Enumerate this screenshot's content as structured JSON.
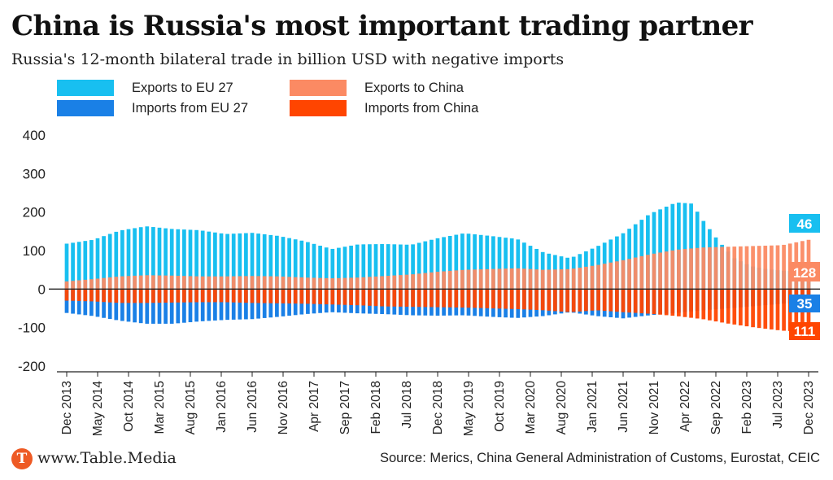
{
  "header": {
    "title": "China is Russia's most important trading partner",
    "subtitle": "Russia's 12-month bilateral trade in billion USD with negative imports"
  },
  "legend": [
    {
      "label": "Exports to EU 27",
      "color": "#18bff0"
    },
    {
      "label": "Imports from EU 27",
      "color": "#1a80e6"
    },
    {
      "label": "Exports to China",
      "color": "#fb8a63"
    },
    {
      "label": "Imports from China",
      "color": "#ff4500"
    }
  ],
  "footer": {
    "logo_letter": "T",
    "site": "www.Table.Media",
    "source": "Source: Merics, China General Administration of Customs, Eurostat, CEIC"
  },
  "chart_data": {
    "type": "bar",
    "title": "China is Russia's most important trading partner",
    "subtitle": "Russia's 12-month bilateral trade in billion USD with negative imports",
    "xlabel": "",
    "ylabel": "",
    "ylim": [
      -200,
      400
    ],
    "yticks": [
      -200,
      -100,
      0,
      100,
      200,
      300,
      400
    ],
    "grid": false,
    "x_start": "Dec 2013",
    "x_end": "Dec 2023",
    "xtick_labels": [
      "Dec 2013",
      "May 2014",
      "Oct 2014",
      "Mar 2015",
      "Aug 2015",
      "Jan 2016",
      "Jun 2016",
      "Nov 2016",
      "Apr 2017",
      "Sep 2017",
      "Feb 2018",
      "Jul 2018",
      "Dec 2018",
      "May 2019",
      "Oct 2019",
      "Mar 2020",
      "Aug 2020",
      "Jan 2021",
      "Jun 2021",
      "Nov 2021",
      "Apr 2022",
      "Sep 2022",
      "Feb 2023",
      "Jul 2023",
      "Dec 2023"
    ],
    "anchor_values": {
      "exports_eu": [
        [
          0,
          118
        ],
        [
          5,
          128
        ],
        [
          10,
          152
        ],
        [
          15,
          163
        ],
        [
          20,
          156
        ],
        [
          25,
          153
        ],
        [
          30,
          143
        ],
        [
          35,
          146
        ],
        [
          40,
          138
        ],
        [
          45,
          124
        ],
        [
          50,
          104
        ],
        [
          55,
          116
        ],
        [
          60,
          117
        ],
        [
          65,
          115
        ],
        [
          70,
          132
        ],
        [
          75,
          145
        ],
        [
          80,
          138
        ],
        [
          85,
          130
        ],
        [
          90,
          95
        ],
        [
          95,
          80
        ],
        [
          100,
          110
        ],
        [
          105,
          145
        ],
        [
          110,
          195
        ],
        [
          115,
          225
        ],
        [
          118,
          222
        ],
        [
          120,
          180
        ],
        [
          123,
          125
        ],
        [
          126,
          80
        ],
        [
          129,
          60
        ],
        [
          132,
          52
        ],
        [
          135,
          48
        ],
        [
          138,
          46
        ],
        [
          140,
          46
        ]
      ],
      "imports_eu": [
        [
          0,
          -62
        ],
        [
          5,
          -70
        ],
        [
          10,
          -82
        ],
        [
          15,
          -90
        ],
        [
          20,
          -90
        ],
        [
          25,
          -84
        ],
        [
          30,
          -80
        ],
        [
          35,
          -78
        ],
        [
          40,
          -72
        ],
        [
          45,
          -65
        ],
        [
          50,
          -60
        ],
        [
          55,
          -63
        ],
        [
          60,
          -65
        ],
        [
          65,
          -68
        ],
        [
          70,
          -69
        ],
        [
          75,
          -68
        ],
        [
          80,
          -72
        ],
        [
          85,
          -75
        ],
        [
          90,
          -70
        ],
        [
          95,
          -60
        ],
        [
          100,
          -70
        ],
        [
          105,
          -76
        ],
        [
          110,
          -68
        ],
        [
          115,
          -62
        ],
        [
          120,
          -55
        ],
        [
          125,
          -50
        ],
        [
          130,
          -44
        ],
        [
          135,
          -38
        ],
        [
          140,
          -35
        ]
      ],
      "exports_china": [
        [
          0,
          20
        ],
        [
          5,
          26
        ],
        [
          10,
          33
        ],
        [
          15,
          36
        ],
        [
          20,
          35
        ],
        [
          25,
          33
        ],
        [
          30,
          33
        ],
        [
          35,
          34
        ],
        [
          40,
          33
        ],
        [
          45,
          30
        ],
        [
          50,
          28
        ],
        [
          55,
          30
        ],
        [
          60,
          34
        ],
        [
          65,
          38
        ],
        [
          70,
          45
        ],
        [
          75,
          50
        ],
        [
          80,
          52
        ],
        [
          85,
          54
        ],
        [
          90,
          50
        ],
        [
          95,
          52
        ],
        [
          100,
          62
        ],
        [
          105,
          75
        ],
        [
          110,
          90
        ],
        [
          115,
          102
        ],
        [
          120,
          108
        ],
        [
          125,
          110
        ],
        [
          130,
          112
        ],
        [
          135,
          114
        ],
        [
          140,
          128
        ]
      ],
      "imports_china": [
        [
          0,
          -30
        ],
        [
          5,
          -32
        ],
        [
          10,
          -36
        ],
        [
          15,
          -36
        ],
        [
          20,
          -35
        ],
        [
          25,
          -34
        ],
        [
          30,
          -34
        ],
        [
          35,
          -36
        ],
        [
          40,
          -37
        ],
        [
          45,
          -38
        ],
        [
          50,
          -40
        ],
        [
          55,
          -42
        ],
        [
          60,
          -45
        ],
        [
          65,
          -46
        ],
        [
          70,
          -47
        ],
        [
          75,
          -48
        ],
        [
          80,
          -50
        ],
        [
          85,
          -52
        ],
        [
          90,
          -55
        ],
        [
          95,
          -60
        ],
        [
          100,
          -55
        ],
        [
          105,
          -60
        ],
        [
          110,
          -64
        ],
        [
          115,
          -70
        ],
        [
          120,
          -78
        ],
        [
          125,
          -90
        ],
        [
          130,
          -100
        ],
        [
          135,
          -108
        ],
        [
          140,
          -111
        ]
      ]
    },
    "end_labels": [
      {
        "series": "Exports to EU 27",
        "value": "46"
      },
      {
        "series": "Exports to China",
        "value": "128"
      },
      {
        "series": "Imports from EU 27",
        "value": "35"
      },
      {
        "series": "Imports from China",
        "value": "111"
      }
    ]
  }
}
